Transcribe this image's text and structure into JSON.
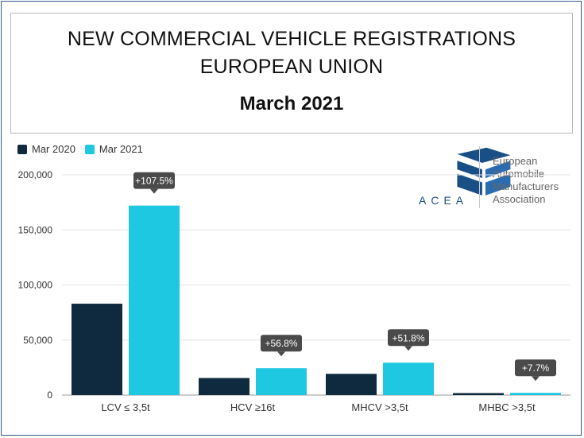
{
  "title_line1": "NEW COMMERCIAL VEHICLE REGISTRATIONS",
  "title_line2": "EUROPEAN UNION",
  "subtitle": "March 2021",
  "legend": [
    {
      "label": "Mar 2020",
      "color": "#0f2a3e"
    },
    {
      "label": "Mar 2021",
      "color": "#1ec8e0"
    }
  ],
  "logo": {
    "wordmark": "ACEA",
    "association": [
      "European",
      "Automobile",
      "Manufacturers",
      "Association"
    ],
    "color": "#1a4f86"
  },
  "chart_data": {
    "type": "bar",
    "categories": [
      "LCV ≤ 3,5t",
      "HCV ≥16t",
      "MHCV >3,5t",
      "MHBC >3,5t"
    ],
    "series": [
      {
        "name": "Mar 2020",
        "values": [
          83000,
          15500,
          19300,
          1800
        ]
      },
      {
        "name": "Mar 2021",
        "values": [
          172100,
          24400,
          29400,
          2000
        ]
      }
    ],
    "annotations": [
      "+107.5%",
      "+56.8%",
      "+51.8%",
      "+7.7%"
    ],
    "yticks": [
      0,
      50000,
      100000,
      150000,
      200000
    ],
    "ytick_labels": [
      "0",
      "50,000",
      "100,000",
      "150,000",
      "200,000"
    ],
    "ylim": [
      0,
      200000
    ],
    "grid": true,
    "legend_position": "top-left"
  }
}
